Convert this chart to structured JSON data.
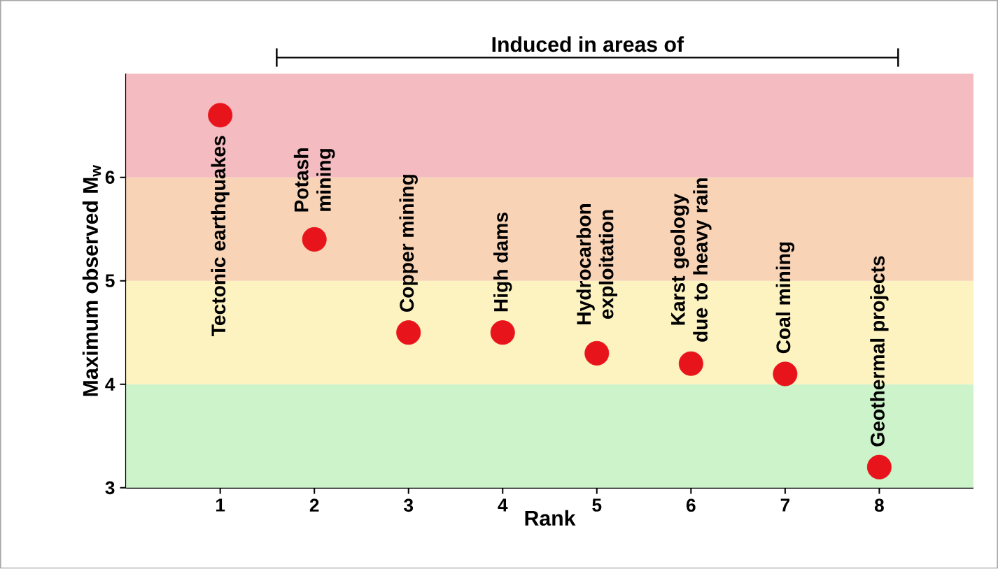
{
  "chart_data": {
    "type": "scatter",
    "xlabel": "Rank",
    "ylabel": "Maximum observed M$_{w}$",
    "x": [
      1,
      2,
      3,
      4,
      5,
      6,
      7,
      8
    ],
    "values": [
      6.6,
      5.4,
      4.5,
      4.5,
      4.3,
      4.2,
      4.1,
      3.2
    ],
    "color": "#e8141b",
    "marker": "circle",
    "xlim": [
      0,
      9
    ],
    "ylim": [
      3,
      7
    ],
    "xticks": [
      1,
      2,
      3,
      4,
      5,
      6,
      7,
      8
    ],
    "yticks": [
      3,
      4,
      5,
      6
    ],
    "bands": [
      {
        "axis": "y",
        "from": 3,
        "to": 4,
        "color": "#cdf3cb"
      },
      {
        "axis": "y",
        "from": 4,
        "to": 5,
        "color": "#fdf3c1"
      },
      {
        "axis": "y",
        "from": 5,
        "to": 6,
        "color": "#f8d3b5"
      },
      {
        "axis": "y",
        "from": 6,
        "to": 7,
        "color": "#f4bcc0"
      }
    ],
    "annotations": [
      "Induced in areas of",
      {
        "text": "Tectonic earthquakes",
        "x": 1,
        "y": 6.6
      },
      {
        "text": "Potash mining",
        "x": 2,
        "y": 5.4
      },
      {
        "text": "Copper mining",
        "x": 3,
        "y": 4.5
      },
      {
        "text": "High dams",
        "x": 4,
        "y": 4.5
      },
      {
        "text": "Hydrocarbon exploitation",
        "x": 5,
        "y": 4.3
      },
      {
        "text": "Karst geology due to heavy rain",
        "x": 6,
        "y": 4.2
      },
      {
        "text": "Coal mining",
        "x": 7,
        "y": 4.1
      },
      {
        "text": "Geothermal projects",
        "x": 8,
        "y": 3.2
      }
    ]
  }
}
